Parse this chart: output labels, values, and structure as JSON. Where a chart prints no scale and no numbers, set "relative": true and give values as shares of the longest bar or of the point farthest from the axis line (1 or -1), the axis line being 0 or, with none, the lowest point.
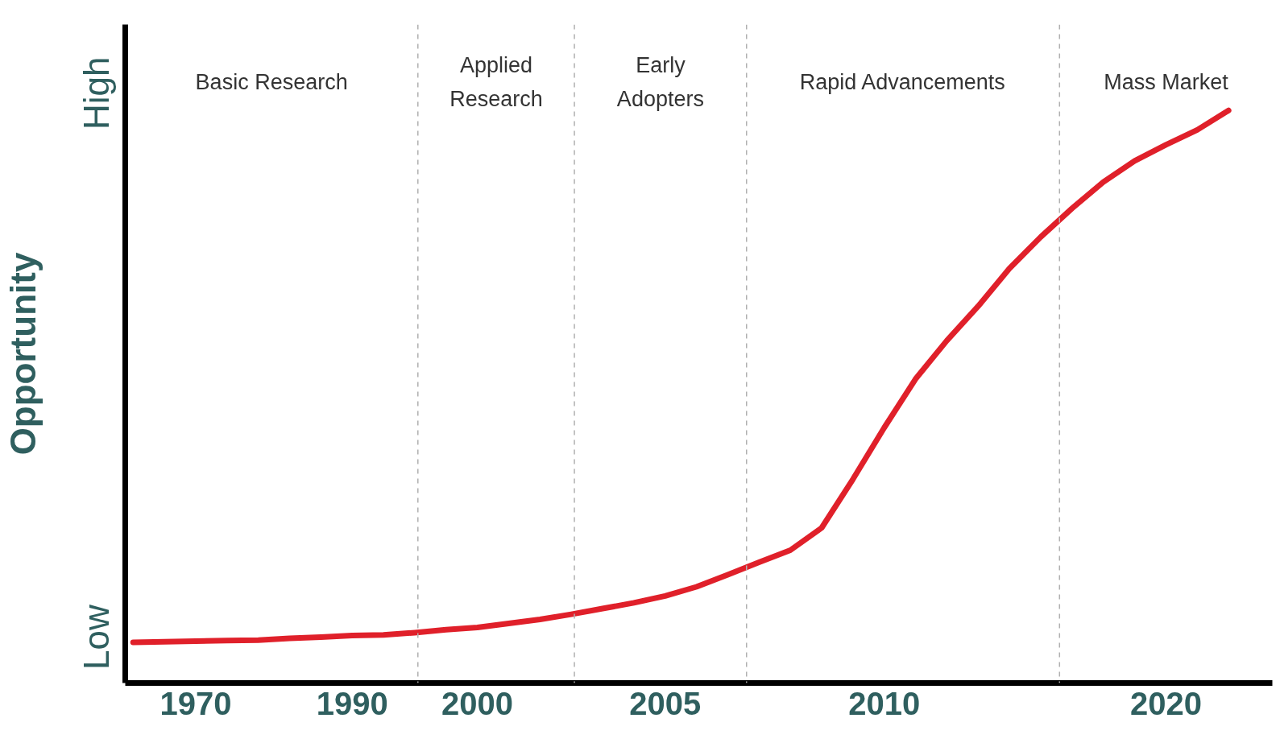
{
  "chart_data": {
    "type": "line",
    "relative": true,
    "ylabel": "Opportunity",
    "categories": [
      null,
      null,
      "1970",
      null,
      null,
      null,
      null,
      "1990",
      null,
      null,
      null,
      "2000",
      null,
      null,
      null,
      null,
      null,
      "2005",
      null,
      null,
      null,
      null,
      null,
      null,
      "2010",
      null,
      null,
      null,
      null,
      null,
      null,
      null,
      null,
      "2020",
      null,
      null
    ],
    "series": [
      {
        "color": "#e0202a",
        "values": [
          0.071,
          0.072,
          0.073,
          0.074,
          0.075,
          0.078,
          0.08,
          0.083,
          0.084,
          0.088,
          0.093,
          0.097,
          0.104,
          0.111,
          0.12,
          0.13,
          0.14,
          0.152,
          0.168,
          0.189,
          0.211,
          0.232,
          0.271,
          0.356,
          0.446,
          0.531,
          0.598,
          0.658,
          0.724,
          0.779,
          0.829,
          0.875,
          0.912,
          0.94,
          0.966,
          1.0
        ]
      }
    ],
    "annotations": [
      "Basic Research",
      "Applied\nResearch",
      "Early\nAdopters",
      "Rapid Advancements",
      "Mass Market",
      "Low",
      "High"
    ],
    "marker": "none",
    "line_style": "solid"
  }
}
